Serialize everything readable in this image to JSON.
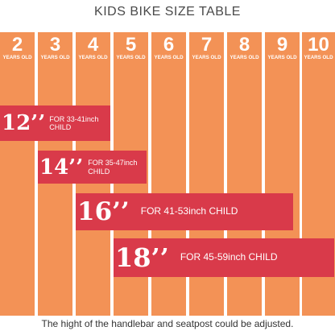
{
  "title": "KIDS BIKE SIZE TABLE",
  "columns": [
    {
      "num": "2",
      "label": "YEARS OLD"
    },
    {
      "num": "3",
      "label": "YEARS OLD"
    },
    {
      "num": "4",
      "label": "YEARS OLD"
    },
    {
      "num": "5",
      "label": "YEARS OLD"
    },
    {
      "num": "6",
      "label": "YEARS OLD"
    },
    {
      "num": "7",
      "label": "YEARS OLD"
    },
    {
      "num": "8",
      "label": "YEARS OLD"
    },
    {
      "num": "9",
      "label": "YEARS OLD"
    },
    {
      "num": "10",
      "label": "YEARS OLD"
    }
  ],
  "bands": [
    {
      "size": "12’’",
      "line1": "FOR 33-41inch",
      "line2": "CHILD",
      "start_age": 2
    },
    {
      "size": "14’’",
      "line1": "FOR 35-47inch",
      "line2": "CHILD",
      "start_age": 3
    },
    {
      "size": "16’’",
      "line1": "FOR 41-53inch CHILD",
      "line2": "",
      "start_age": 4
    },
    {
      "size": "18’’",
      "line1": "FOR 45-59inch CHILD",
      "line2": "",
      "start_age": 5
    }
  ],
  "footer": "The hight of the handlebar and seatpost could be adjusted.",
  "colors": {
    "column": "#f39256",
    "band": "#d93a4a",
    "text_on_color": "#ffffff",
    "title": "#4a4a4a"
  }
}
